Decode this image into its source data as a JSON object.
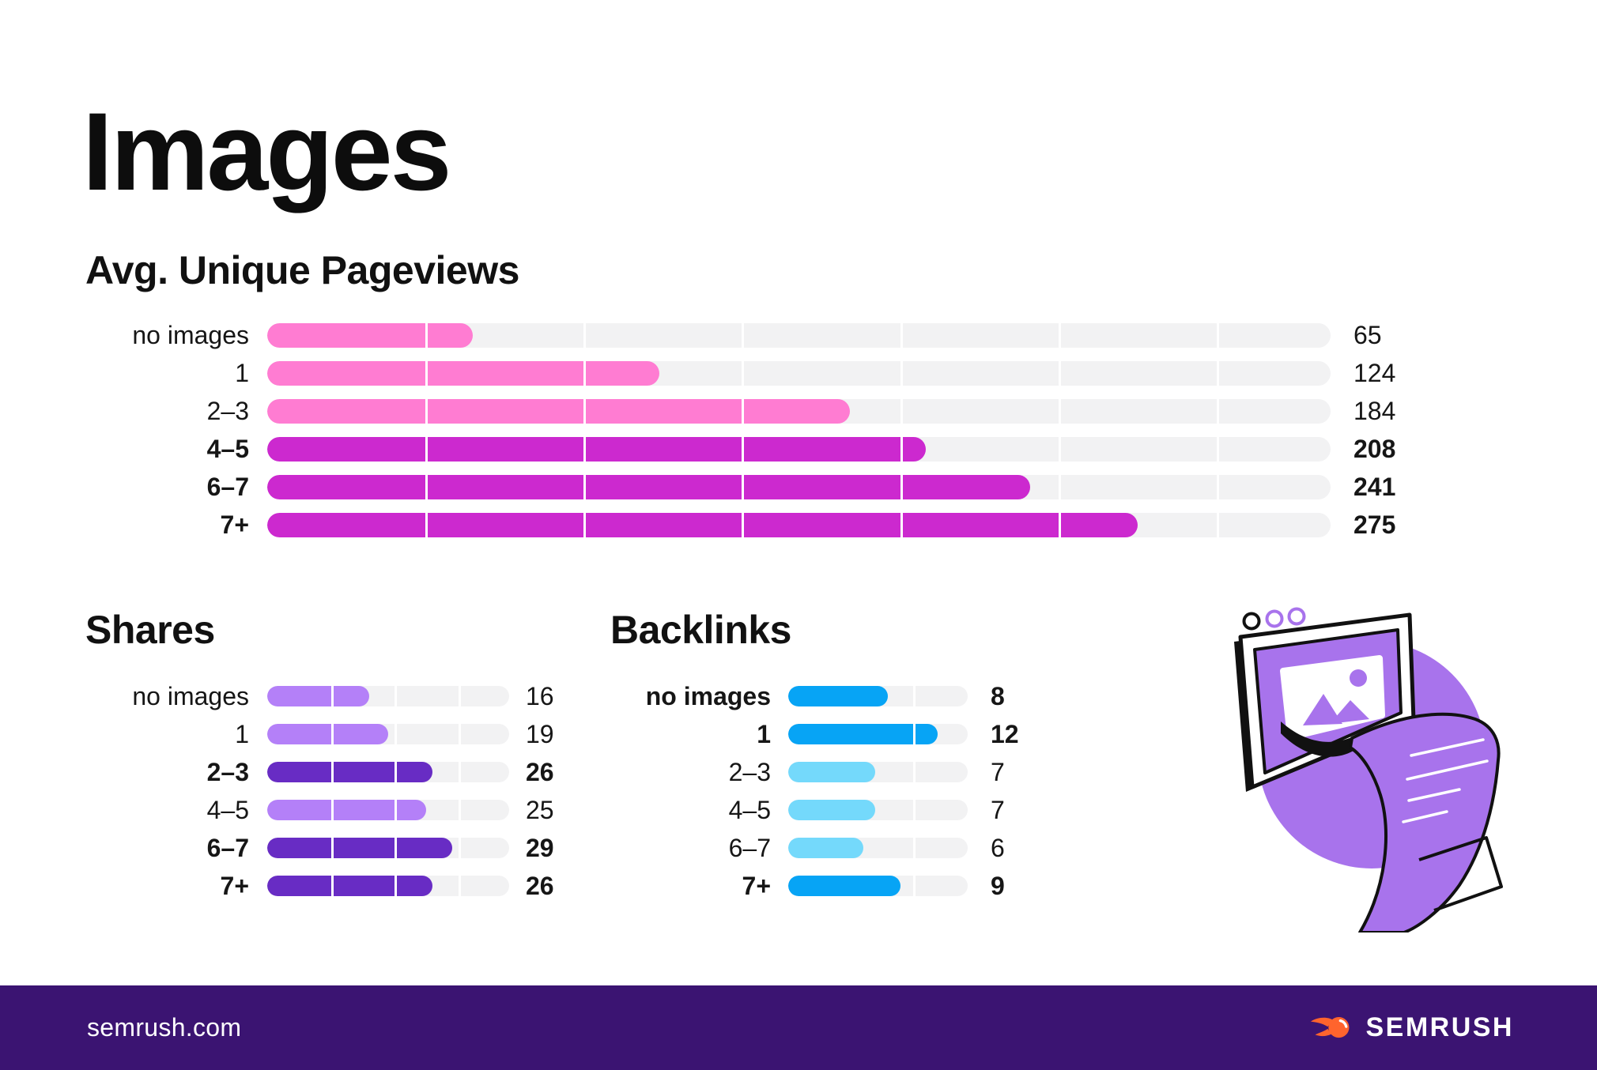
{
  "page": {
    "title": "Images"
  },
  "chart_data": [
    {
      "id": "pageviews",
      "type": "bar",
      "title": "Avg. Unique Pageviews",
      "categories": [
        "no images",
        "1",
        "2–3",
        "4–5",
        "6–7",
        "7+"
      ],
      "values": [
        65,
        124,
        184,
        208,
        241,
        275
      ],
      "highlighted": [
        false,
        false,
        false,
        true,
        true,
        true
      ],
      "colors": {
        "normal": "#FF7CD2",
        "highlight": "#CC29CF"
      },
      "axis_max": 336,
      "gridlines": [
        50,
        100,
        150,
        200,
        250,
        300
      ],
      "legend": "none",
      "orientation": "horizontal"
    },
    {
      "id": "shares",
      "type": "bar",
      "title": "Shares",
      "categories": [
        "no images",
        "1",
        "2–3",
        "4–5",
        "6–7",
        "7+"
      ],
      "values": [
        16,
        19,
        26,
        25,
        29,
        26
      ],
      "highlighted": [
        false,
        false,
        true,
        false,
        true,
        true
      ],
      "colors": {
        "normal": "#B480F8",
        "highlight": "#682CC4"
      },
      "axis_max": 38,
      "gridlines": [
        10,
        20,
        30
      ],
      "legend": "none",
      "orientation": "horizontal"
    },
    {
      "id": "backlinks",
      "type": "bar",
      "title": "Backlinks",
      "categories": [
        "no images",
        "1",
        "2–3",
        "4–5",
        "6–7",
        "7+"
      ],
      "values": [
        8,
        12,
        7,
        7,
        6,
        9
      ],
      "highlighted": [
        true,
        true,
        false,
        false,
        false,
        true
      ],
      "colors": {
        "normal": "#74D9FB",
        "highlight": "#07A4F5"
      },
      "axis_max": 14.4,
      "gridlines": [
        10
      ],
      "legend": "none",
      "orientation": "horizontal"
    }
  ],
  "illustration": {
    "name": "monitor-printing-image",
    "purple": "#A873EC"
  },
  "footer": {
    "site": "semrush.com",
    "brand": "SEMRUSH",
    "bg_color": "#3B1472",
    "logo_color": "#FF642D"
  }
}
